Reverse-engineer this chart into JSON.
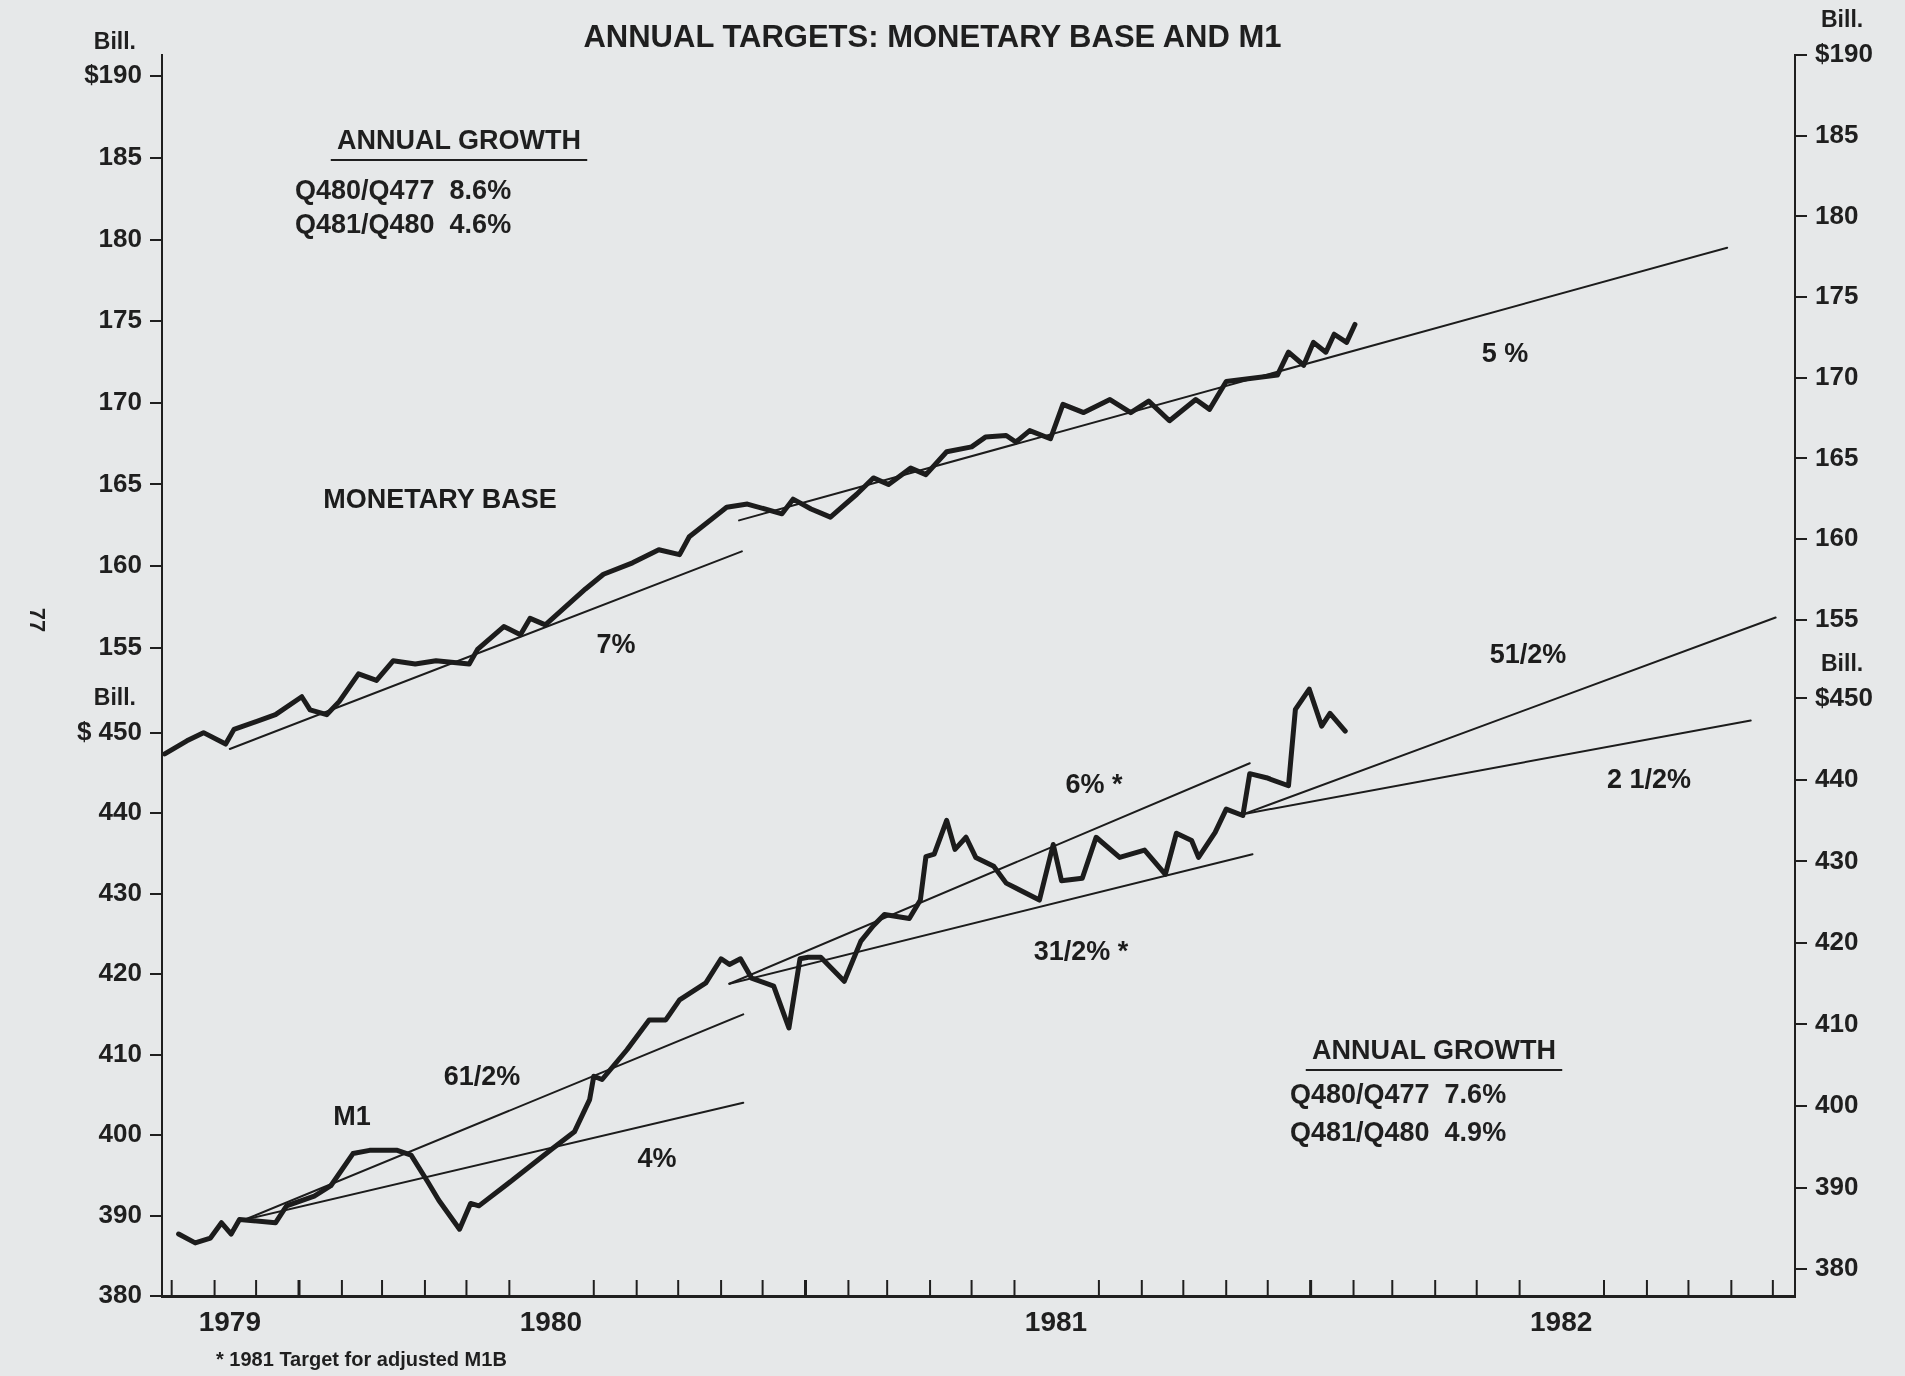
{
  "chart_data": [
    {
      "type": "line",
      "title": "ANNUAL TARGETS: MONETARY BASE AND M1",
      "ylabel": "Bill.",
      "y2label": "Bill.",
      "tick_labels": "y",
      "xlim": [
        "1979-09-24",
        "1982-12-17"
      ],
      "ylim": [
        115.3,
        191.3
      ],
      "yticks": [
        155,
        160,
        165,
        170,
        175,
        180,
        185,
        {
          "value": 190,
          "label": "$190"
        }
      ],
      "y2lim": [
        113.1,
        190
      ],
      "y2ticks": [
        155,
        160,
        165,
        170,
        175,
        180,
        185,
        {
          "value": 190,
          "label": "$190"
        }
      ],
      "series": [
        {
          "name": "MONETARY BASE",
          "color": "#1c1c1c",
          "x": [
            "1979-09-26",
            "1979-10-12",
            "1979-10-24",
            "1979-11-09",
            "1979-11-15",
            "1979-12-15",
            "1980-01-03",
            "1980-01-09",
            "1980-01-21",
            "1980-01-30",
            "1980-02-13",
            "1980-02-26",
            "1980-03-09",
            "1980-03-25",
            "1980-04-09",
            "1980-05-03",
            "1980-05-09",
            "1980-05-28",
            "1980-06-09",
            "1980-06-16",
            "1980-06-27",
            "1980-07-26",
            "1980-08-08",
            "1980-08-29",
            "1980-09-17",
            "1980-10-02",
            "1980-10-09",
            "1980-11-05",
            "1980-11-20",
            "1980-12-15",
            "1980-12-23",
            "1981-01-05",
            "1981-01-19",
            "1981-02-07",
            "1981-02-19",
            "1981-03-02",
            "1981-03-18",
            "1981-03-29",
            "1981-04-13",
            "1981-05-01",
            "1981-05-11",
            "1981-05-26",
            "1981-06-02",
            "1981-06-12",
            "1981-06-27",
            "1981-07-06",
            "1981-07-21",
            "1981-08-09",
            "1981-08-24",
            "1981-09-06",
            "1981-09-21",
            "1981-10-10",
            "1981-10-20",
            "1981-11-01",
            "1981-12-08",
            "1981-12-16",
            "1981-12-27",
            "1982-01-03",
            "1982-01-12",
            "1982-01-18",
            "1982-01-27",
            "1982-02-02"
          ],
          "values": [
            148.5,
            149.3,
            149.8,
            149.1,
            150.0,
            150.9,
            152.0,
            151.2,
            150.9,
            151.7,
            153.4,
            153.0,
            154.2,
            154.0,
            154.2,
            154.0,
            154.9,
            156.3,
            155.8,
            156.8,
            156.4,
            158.6,
            159.5,
            160.2,
            161.0,
            160.7,
            161.8,
            163.6,
            163.8,
            163.2,
            164.1,
            163.5,
            163.0,
            164.4,
            165.4,
            165.0,
            166.0,
            165.6,
            167.0,
            167.3,
            167.9,
            168.0,
            167.6,
            168.3,
            167.8,
            169.9,
            169.4,
            170.2,
            169.4,
            170.1,
            168.9,
            170.2,
            169.6,
            171.3,
            171.7,
            173.1,
            172.3,
            173.7,
            173.1,
            174.2,
            173.7,
            174.8
          ]
        },
        {
          "name": "7%",
          "color": "#1c1c1c",
          "x": [
            "1979-11-12",
            "1980-11-16"
          ],
          "values": [
            148.8,
            160.9
          ]
        },
        {
          "name": "5 %",
          "color": "#1c1c1c",
          "x": [
            "1980-11-14",
            "1982-10-29"
          ],
          "values": [
            162.8,
            179.5
          ]
        }
      ],
      "annotations": [
        "ANNUAL GROWTH",
        "Q480/Q477  8.6%",
        "Q481/Q480  4.6%",
        "77"
      ]
    },
    {
      "type": "line",
      "ylabel": "Bill.",
      "y2label": "Bill.",
      "xlim": [
        "1979-09-24",
        "1982-12-17"
      ],
      "xticks": [
        {
          "value": "1979-10-01",
          "label": null
        },
        {
          "value": "1979-11-01",
          "label": null
        },
        {
          "value": "1979-11-12",
          "label": "1979"
        },
        {
          "value": "1979-12-01",
          "label": null
        },
        {
          "value": "1980-01-01",
          "label": null
        },
        {
          "value": "1980-02-01",
          "label": null
        },
        {
          "value": "1980-03-01",
          "label": null
        },
        {
          "value": "1980-04-01",
          "label": null
        },
        {
          "value": "1980-05-01",
          "label": null
        },
        {
          "value": "1980-06-01",
          "label": null
        },
        {
          "value": "1980-07-01",
          "label": "1980"
        },
        {
          "value": "1980-08-01",
          "label": null
        },
        {
          "value": "1980-09-01",
          "label": null
        },
        {
          "value": "1980-10-01",
          "label": null
        },
        {
          "value": "1980-11-01",
          "label": null
        },
        {
          "value": "1980-12-01",
          "label": null
        },
        {
          "value": "1981-01-01",
          "label": null
        },
        {
          "value": "1981-02-01",
          "label": null
        },
        {
          "value": "1981-03-01",
          "label": null
        },
        {
          "value": "1981-04-01",
          "label": null
        },
        {
          "value": "1981-05-01",
          "label": null
        },
        {
          "value": "1981-06-01",
          "label": null
        },
        {
          "value": "1981-07-01",
          "label": "1981"
        },
        {
          "value": "1981-08-01",
          "label": null
        },
        {
          "value": "1981-09-01",
          "label": null
        },
        {
          "value": "1981-10-01",
          "label": null
        },
        {
          "value": "1981-11-01",
          "label": null
        },
        {
          "value": "1981-12-01",
          "label": null
        },
        {
          "value": "1982-01-01",
          "label": null
        },
        {
          "value": "1982-02-01",
          "label": null
        },
        {
          "value": "1982-03-01",
          "label": null
        },
        {
          "value": "1982-04-01",
          "label": null
        },
        {
          "value": "1982-05-01",
          "label": null
        },
        {
          "value": "1982-06-01",
          "label": null
        },
        {
          "value": "1982-07-01",
          "label": "1982"
        },
        {
          "value": "1982-08-01",
          "label": null
        },
        {
          "value": "1982-09-01",
          "label": null
        },
        {
          "value": "1982-10-01",
          "label": null
        },
        {
          "value": "1982-11-01",
          "label": null
        },
        {
          "value": "1982-12-01",
          "label": null
        }
      ],
      "ylim": [
        380,
        534.2
      ],
      "yticks": [
        380,
        390,
        400,
        410,
        420,
        430,
        440,
        {
          "value": 450,
          "label": "$ 450"
        }
      ],
      "y2lim": [
        376.7,
        528.9
      ],
      "y2ticks": [
        380,
        390,
        400,
        410,
        420,
        430,
        440,
        {
          "value": 450,
          "label": "$450"
        }
      ],
      "series": [
        {
          "name": "M1",
          "color": "#1c1c1c",
          "x": [
            "1979-10-06",
            "1979-10-18",
            "1979-10-29",
            "1979-11-06",
            "1979-11-13",
            "1979-11-19",
            "1979-12-15",
            "1979-12-23",
            "1980-01-12",
            "1980-01-24",
            "1980-02-09",
            "1980-02-21",
            "1980-03-12",
            "1980-03-22",
            "1980-04-03",
            "1980-04-11",
            "1980-04-26",
            "1980-05-04",
            "1980-05-10",
            "1980-06-04",
            "1980-07-02",
            "1980-07-18",
            "1980-07-29",
            "1980-08-01",
            "1980-08-07",
            "1980-08-25",
            "1980-09-10",
            "1980-09-22",
            "1980-10-02",
            "1980-10-21",
            "1980-11-01",
            "1980-11-07",
            "1980-11-15",
            "1980-11-23",
            "1980-12-09",
            "1980-12-20",
            "1980-12-28",
            "1981-01-03",
            "1981-01-12",
            "1981-01-29",
            "1981-02-10",
            "1981-02-19",
            "1981-02-27",
            "1981-03-17",
            "1981-03-25",
            "1981-03-29",
            "1981-04-04",
            "1981-04-13",
            "1981-04-19",
            "1981-04-27",
            "1981-05-04",
            "1981-05-17",
            "1981-05-26",
            "1981-06-19",
            "1981-06-29",
            "1981-07-05",
            "1981-07-20",
            "1981-07-30",
            "1981-08-16",
            "1981-09-03",
            "1981-09-18",
            "1981-09-26",
            "1981-10-07",
            "1981-10-12",
            "1981-10-24",
            "1981-11-01",
            "1981-11-13",
            "1981-11-18",
            "1981-11-30",
            "1981-12-16",
            "1981-12-21",
            "1981-12-31",
            "1982-01-09",
            "1982-01-15",
            "1982-01-26"
          ],
          "values": [
            387.7,
            386.6,
            387.2,
            389.1,
            387.7,
            389.5,
            389.1,
            391.2,
            392.4,
            393.7,
            397.7,
            398.1,
            398.1,
            397.5,
            394.2,
            391.9,
            388.3,
            391.5,
            391.2,
            394.5,
            398.3,
            400.4,
            404.4,
            407.3,
            406.9,
            410.6,
            414.3,
            414.3,
            416.8,
            418.9,
            421.9,
            421.2,
            421.9,
            419.5,
            418.5,
            413.3,
            421.9,
            422.1,
            422.1,
            419.1,
            424.1,
            426.0,
            427.4,
            426.9,
            429.2,
            434.6,
            434.9,
            439.1,
            435.5,
            437.0,
            434.5,
            433.4,
            431.3,
            429.2,
            436.1,
            431.6,
            431.9,
            437.0,
            434.5,
            435.4,
            432.4,
            437.5,
            436.6,
            434.5,
            437.6,
            440.5,
            439.7,
            444.9,
            444.4,
            443.4,
            452.9,
            455.4,
            450.8,
            452.4,
            450.2
          ]
        },
        {
          "name": "61/2%",
          "color": "#1c1c1c",
          "x": [
            "1979-11-23",
            "1980-11-17"
          ],
          "values": [
            389.5,
            415.0
          ]
        },
        {
          "name": "4%",
          "color": "#1c1c1c",
          "x": [
            "1979-11-23",
            "1980-11-17"
          ],
          "values": [
            389.5,
            404.0
          ]
        },
        {
          "name": "6% *",
          "color": "#1c1c1c",
          "x": [
            "1980-11-07",
            "1981-11-18"
          ],
          "values": [
            418.8,
            446.2
          ]
        },
        {
          "name": "31/2% *",
          "color": "#1c1c1c",
          "x": [
            "1980-11-07",
            "1981-11-20"
          ],
          "values": [
            418.8,
            434.9
          ]
        },
        {
          "name": "51/2%",
          "color": "#1c1c1c",
          "x": [
            "1981-11-14",
            "1982-12-03"
          ],
          "values": [
            439.9,
            464.3
          ]
        },
        {
          "name": "2 1/2%",
          "color": "#1c1c1c",
          "x": [
            "1981-11-14",
            "1982-11-15"
          ],
          "values": [
            439.9,
            451.5
          ]
        }
      ],
      "annotations": [
        "ANNUAL GROWTH",
        "Q480/Q477  7.6%",
        "Q481/Q480  4.9%",
        "* 1981 Target for adjusted M1B"
      ]
    }
  ]
}
